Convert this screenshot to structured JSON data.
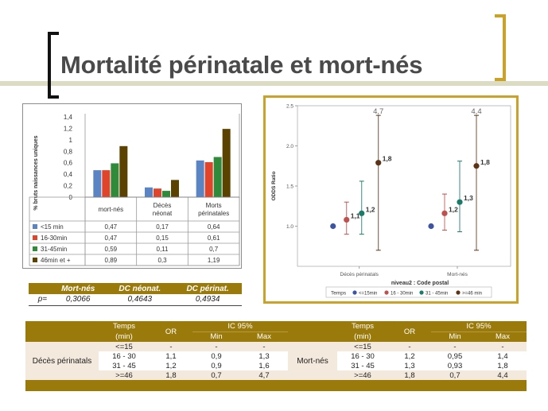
{
  "slide": {
    "title": "Mortalité périnatale et mort-nés"
  },
  "chart_data": [
    {
      "type": "bar",
      "ylabel": "% bruts naissances uniques",
      "ylim": [
        0,
        1.4
      ],
      "yticks": [
        "0",
        "0,2",
        "0,4",
        "0,6",
        "0,8",
        "1",
        "1,2",
        "1,4"
      ],
      "categories": [
        "mort-nés",
        "Décès néonat",
        "Morts périnatales"
      ],
      "category_lines": [
        [
          "mort-nés"
        ],
        [
          "Décès",
          "néonat"
        ],
        [
          "Morts",
          "périnatales"
        ]
      ],
      "series": [
        {
          "name": "<15 min",
          "color": "#5b84c4",
          "values": [
            0.47,
            0.17,
            0.64
          ],
          "labels": [
            "0,47",
            "0,17",
            "0,64"
          ]
        },
        {
          "name": "16-30min",
          "color": "#e0452b",
          "values": [
            0.47,
            0.15,
            0.61
          ],
          "labels": [
            "0,47",
            "0,15",
            "0,61"
          ]
        },
        {
          "name": "31-45min",
          "color": "#2f8a3a",
          "values": [
            0.59,
            0.11,
            0.7
          ],
          "labels": [
            "0,59",
            "0,11",
            "0,7"
          ]
        },
        {
          "name": "46min et +",
          "color": "#5c4200",
          "values": [
            0.89,
            0.3,
            1.19
          ],
          "labels": [
            "0,89",
            "0,3",
            "1,19"
          ]
        }
      ],
      "legend_placement": "table-below",
      "grid": false
    },
    {
      "type": "scatter",
      "xlabel": "niveau2 :  Code postal",
      "ylabel": "ODDS Ratio",
      "ylim": [
        0.5,
        2.5
      ],
      "yticks": [
        "1.0",
        "1.5",
        "2.0",
        "2.5"
      ],
      "yticks_values": [
        1.0,
        1.5,
        2.0,
        2.5
      ],
      "categories": [
        "Décès périnatals",
        "Mort-nés"
      ],
      "legend_title": "Temps",
      "legend_placement": "bottom",
      "grid": false,
      "series": [
        {
          "name": "<=15min",
          "color": "#3d54a5",
          "points": [
            {
              "x": "Décès périnatals",
              "y": 1.0,
              "low": null,
              "high": null,
              "label": ""
            },
            {
              "x": "Mort-nés",
              "y": 1.0,
              "low": null,
              "high": null,
              "label": ""
            }
          ]
        },
        {
          "name": "16 - 30min",
          "color": "#c0504d",
          "points": [
            {
              "x": "Décès périnatals",
              "y": 1.08,
              "low": 0.9,
              "high": 1.3,
              "label": "1,1"
            },
            {
              "x": "Mort-nés",
              "y": 1.16,
              "low": 0.95,
              "high": 1.4,
              "label": "1,2"
            }
          ]
        },
        {
          "name": "31 - 45min",
          "color": "#1b7b6a",
          "points": [
            {
              "x": "Décès périnatals",
              "y": 1.16,
              "low": 0.9,
              "high": 1.56,
              "label": "1,2"
            },
            {
              "x": "Mort-nés",
              "y": 1.3,
              "low": 0.93,
              "high": 1.81,
              "label": "1,3"
            }
          ]
        },
        {
          "name": ">=46 min",
          "color": "#5c3317",
          "points": [
            {
              "x": "Décès périnatals",
              "y": 1.79,
              "low": 0.7,
              "high": 2.38,
              "label": "1,8"
            },
            {
              "x": "Mort-nés",
              "y": 1.75,
              "low": 0.7,
              "high": 2.38,
              "label": "1,8"
            }
          ]
        }
      ],
      "annotations": [
        "4,7",
        "4,4"
      ]
    }
  ],
  "pvalue_table": {
    "headers": [
      "",
      "Mort-nés",
      "DC néonat.",
      "DC périnat."
    ],
    "row_label": "p=",
    "values": [
      "0,3066",
      "0,4643",
      "0,4934"
    ]
  },
  "or_table": {
    "headers": {
      "temps": "Temps",
      "min_unit": "(min)",
      "or": "OR",
      "ic": "IC 95%",
      "min": "Min",
      "max": "Max"
    },
    "groups": [
      {
        "label": "Décès périnatals",
        "rows": [
          {
            "temps": "<=15",
            "or": "-",
            "min": "-",
            "max": "-"
          },
          {
            "temps": "16 - 30",
            "or": "1,1",
            "min": "0,9",
            "max": "1,3"
          },
          {
            "temps": "31 - 45",
            "or": "1,2",
            "min": "0,9",
            "max": "1,6"
          },
          {
            "temps": ">=46",
            "or": "1,8",
            "min": "0,7",
            "max": "4,7"
          }
        ]
      },
      {
        "label": "Mort-nés",
        "rows": [
          {
            "temps": "<=15",
            "or": "-",
            "min": "-",
            "max": "-"
          },
          {
            "temps": "16 - 30",
            "or": "1,2",
            "min": "0,95",
            "max": "1,4"
          },
          {
            "temps": "31 - 45",
            "or": "1,3",
            "min": "0,93",
            "max": "1,8"
          },
          {
            "temps": ">=46",
            "or": "1,8",
            "min": "0,7",
            "max": "4,4"
          }
        ]
      }
    ]
  }
}
